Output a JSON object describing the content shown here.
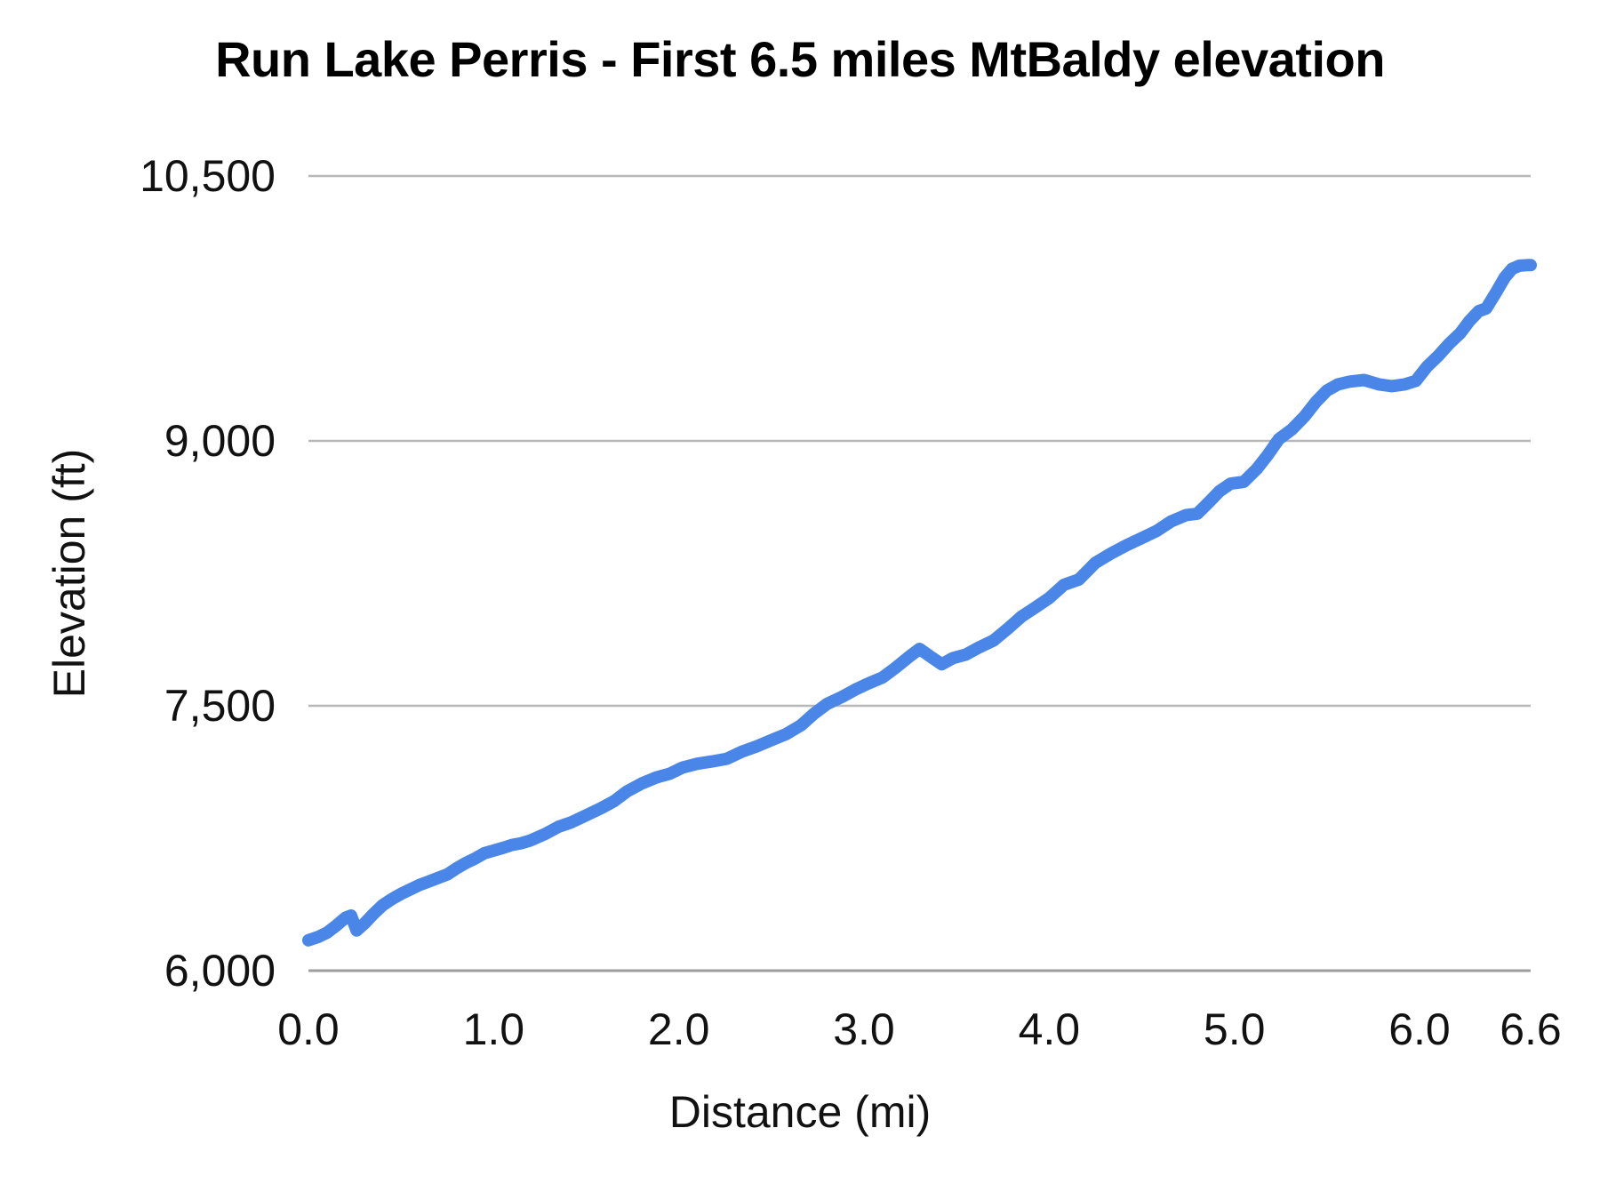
{
  "chart": {
    "title": "Run Lake Perris - First 6.5 miles MtBaldy elevation",
    "x_axis_title": "Distance (mi)",
    "y_axis_title": "Elevation (ft)"
  },
  "colors": {
    "line": "#4a86e8",
    "gridline": "#b7b7b7",
    "axis_line": "#9e9e9e",
    "tick_text": "#111111",
    "background": "#ffffff"
  },
  "chart_data": {
    "type": "line",
    "title": "Run Lake Perris - First 6.5 miles MtBaldy elevation",
    "xlabel": "Distance (mi)",
    "ylabel": "Elevation (ft)",
    "xlim": [
      0,
      6.6
    ],
    "ylim": [
      6000,
      10500
    ],
    "grid": true,
    "legend": "none",
    "x_ticks": {
      "values": [
        0,
        1,
        2,
        3,
        4,
        5,
        6,
        6.6
      ],
      "labels": [
        "0.0",
        "1.0",
        "2.0",
        "3.0",
        "4.0",
        "5.0",
        "6.0",
        "6.6"
      ]
    },
    "y_ticks": {
      "values": [
        6000,
        7500,
        9000,
        10500
      ],
      "labels": [
        "6,000",
        "7,500",
        "9,000",
        "10,500"
      ]
    },
    "series": [
      {
        "name": "elevation_ft",
        "x": [
          0.0,
          0.05,
          0.1,
          0.15,
          0.2,
          0.23,
          0.26,
          0.3,
          0.35,
          0.4,
          0.45,
          0.5,
          0.55,
          0.6,
          0.65,
          0.7,
          0.75,
          0.8,
          0.85,
          0.9,
          0.95,
          1.0,
          1.05,
          1.1,
          1.15,
          1.2,
          1.28,
          1.35,
          1.42,
          1.5,
          1.58,
          1.65,
          1.72,
          1.8,
          1.88,
          1.95,
          2.02,
          2.1,
          2.18,
          2.26,
          2.34,
          2.42,
          2.5,
          2.58,
          2.66,
          2.73,
          2.8,
          2.88,
          2.95,
          3.02,
          3.1,
          3.17,
          3.24,
          3.3,
          3.36,
          3.42,
          3.48,
          3.55,
          3.62,
          3.7,
          3.78,
          3.85,
          3.93,
          4.0,
          4.08,
          4.16,
          4.25,
          4.33,
          4.42,
          4.5,
          4.58,
          4.66,
          4.74,
          4.8,
          4.86,
          4.92,
          4.98,
          5.05,
          5.12,
          5.18,
          5.24,
          5.31,
          5.38,
          5.44,
          5.5,
          5.56,
          5.62,
          5.7,
          5.78,
          5.85,
          5.92,
          5.98,
          6.04,
          6.1,
          6.16,
          6.22,
          6.27,
          6.32,
          6.36,
          6.41,
          6.46,
          6.5,
          6.54,
          6.58,
          6.6
        ],
        "y": [
          6172,
          6190,
          6215,
          6255,
          6300,
          6312,
          6228,
          6265,
          6320,
          6370,
          6405,
          6435,
          6460,
          6485,
          6505,
          6525,
          6545,
          6580,
          6610,
          6635,
          6665,
          6680,
          6695,
          6712,
          6722,
          6738,
          6775,
          6815,
          6840,
          6880,
          6920,
          6960,
          7015,
          7060,
          7095,
          7115,
          7150,
          7172,
          7185,
          7200,
          7240,
          7270,
          7305,
          7340,
          7390,
          7455,
          7510,
          7550,
          7590,
          7625,
          7660,
          7715,
          7775,
          7822,
          7778,
          7735,
          7770,
          7790,
          7830,
          7870,
          7940,
          8005,
          8060,
          8110,
          8185,
          8215,
          8310,
          8360,
          8410,
          8450,
          8490,
          8545,
          8580,
          8588,
          8650,
          8715,
          8758,
          8768,
          8840,
          8920,
          9010,
          9065,
          9140,
          9220,
          9285,
          9320,
          9335,
          9345,
          9320,
          9310,
          9320,
          9340,
          9420,
          9480,
          9550,
          9610,
          9680,
          9735,
          9750,
          9835,
          9925,
          9975,
          9992,
          9995,
          9995
        ]
      }
    ]
  }
}
